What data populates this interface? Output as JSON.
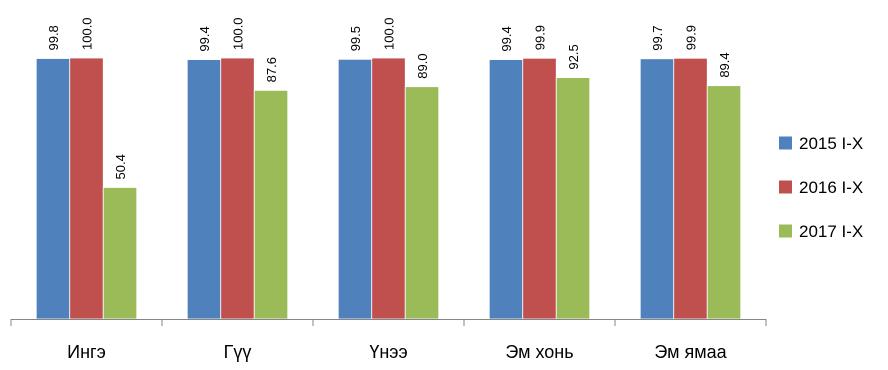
{
  "chart_data": {
    "type": "bar",
    "categories": [
      "Ингэ",
      "Гүү",
      "Үнээ",
      "Эм хонь",
      "Эм ямаа"
    ],
    "series": [
      {
        "name": "2015 I-X",
        "color": "#4F81BD",
        "values": [
          99.8,
          99.4,
          99.5,
          99.4,
          99.7
        ]
      },
      {
        "name": "2016 I-X",
        "color": "#C0504D",
        "values": [
          100.0,
          100.0,
          100.0,
          99.9,
          99.9
        ]
      },
      {
        "name": "2017 I-X",
        "color": "#9BBB59",
        "values": [
          50.4,
          87.6,
          89.0,
          92.5,
          89.4
        ]
      }
    ],
    "data_labels": [
      [
        "99.8",
        "99.4",
        "99.5",
        "99.4",
        "99.7"
      ],
      [
        "100.0",
        "100.0",
        "100.0",
        "99.9",
        "99.9"
      ],
      [
        "50.4",
        "87.6",
        "89.0",
        "92.5",
        "89.4"
      ]
    ],
    "ylim": [
      0,
      100
    ],
    "grid": false,
    "legend_position": "right",
    "y_axis_visible": false
  }
}
